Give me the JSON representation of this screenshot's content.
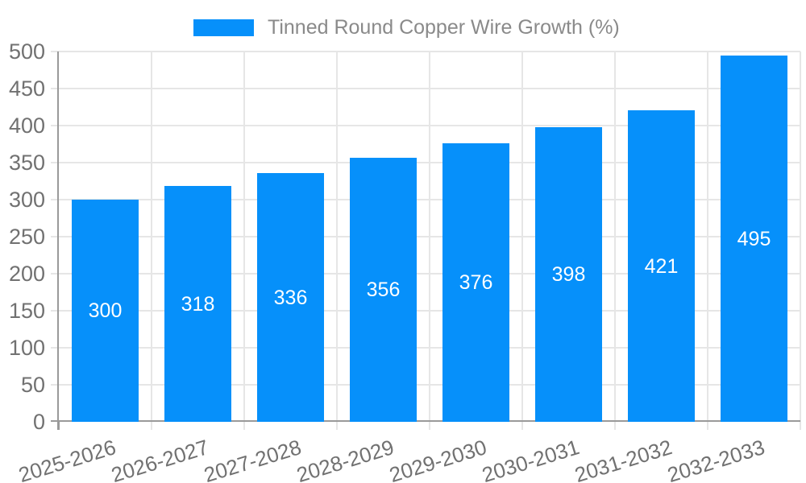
{
  "chart_data": {
    "type": "bar",
    "title": "Tinned Round Copper Wire Growth (%)",
    "legend_entries": [
      "Tinned Round Copper Wire Growth (%)"
    ],
    "legend_position": "top-center",
    "categories": [
      "2025-2026",
      "2026-2027",
      "2027-2028",
      "2028-2029",
      "2029-2030",
      "2030-2031",
      "2031-2032",
      "2032-2033"
    ],
    "values": [
      300,
      318,
      336,
      356,
      376,
      398,
      421,
      495
    ],
    "bar_value_labels": [
      "300",
      "318",
      "336",
      "356",
      "376",
      "398",
      "421",
      "495"
    ],
    "yticks": [
      0,
      50,
      100,
      150,
      200,
      250,
      300,
      350,
      400,
      450,
      500
    ],
    "ylim": [
      0,
      500
    ],
    "xlabel": "",
    "ylabel": "",
    "grid": true,
    "colors": {
      "bar": "#0690FA",
      "bar_label": "#FFFFFF",
      "axis_line": "#9A9A9A",
      "grid_line": "#E6E6E6",
      "tick_label": "#717171",
      "legend_text": "#8A8A8A",
      "background": "#FFFFFF"
    }
  }
}
